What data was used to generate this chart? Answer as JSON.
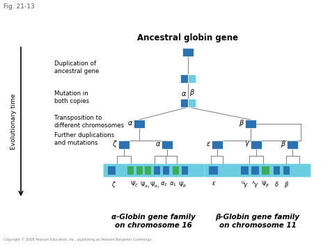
{
  "title": "Ancestral globin gene",
  "fig_label": "Fig. 21-13",
  "evol_label": "Evolutionary time",
  "copyright": "Copyright © 2008 Pearson Education, Inc., publishing as Pearson Benjamin Cummings.",
  "box_dark": "#2a72b0",
  "box_light": "#6dcde0",
  "box_green": "#3aab5a",
  "line_color": "#888888",
  "left_labels": [
    "Duplication of\nancestral gene",
    "Mutation in\nboth copies",
    "Transposition to\ndifferent chromosomes",
    "Further duplications\nand mutations"
  ],
  "alpha_family_label": "α-Globin gene family\non chromosome 16",
  "beta_family_label": "β-Globin gene family\non chromosome 11"
}
